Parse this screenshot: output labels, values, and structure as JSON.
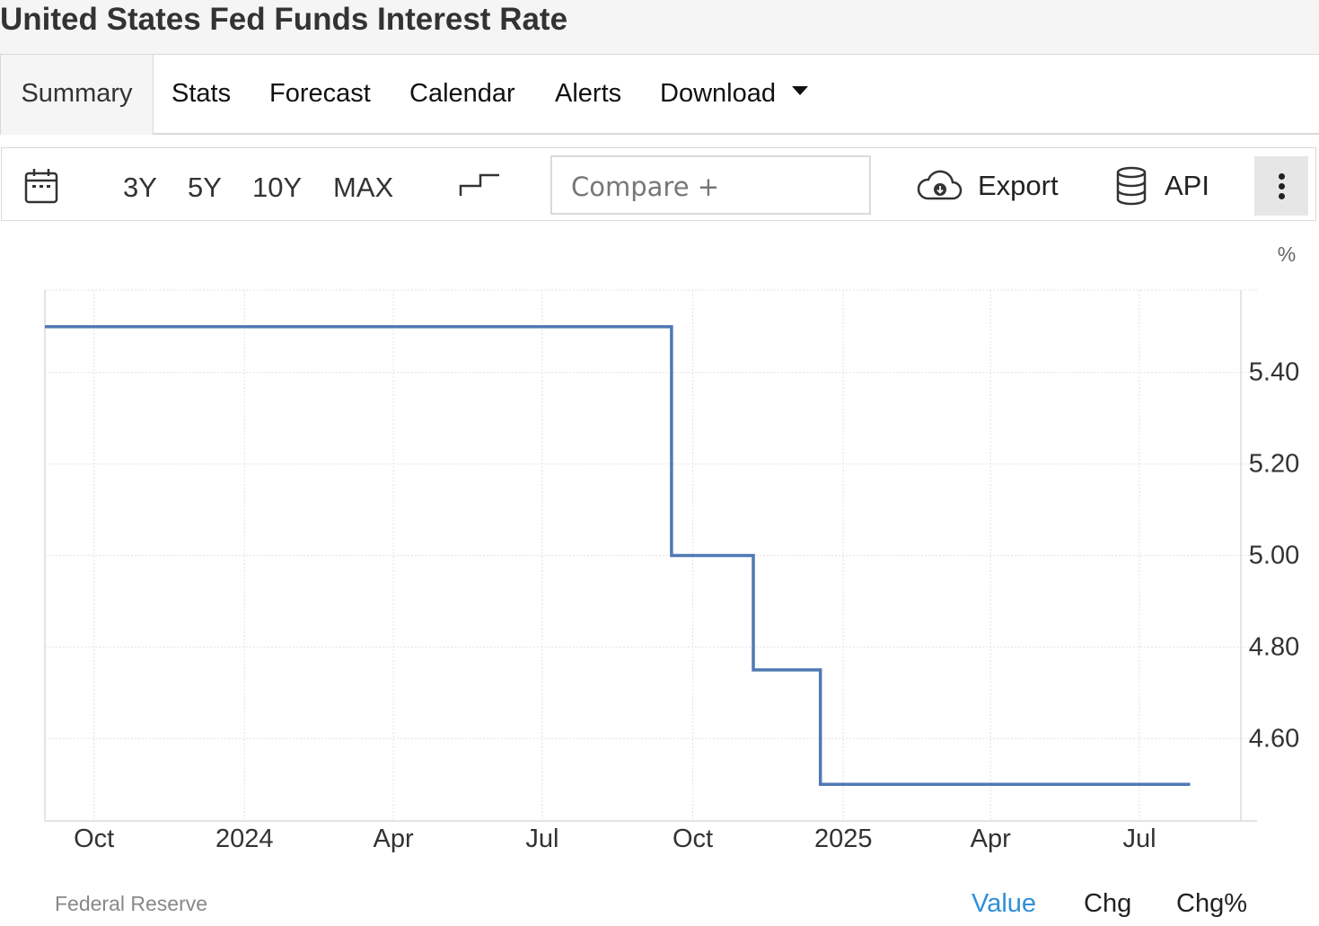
{
  "title": "United States Fed Funds Interest Rate",
  "tabs": [
    {
      "label": "Summary",
      "active": true
    },
    {
      "label": "Stats"
    },
    {
      "label": "Forecast"
    },
    {
      "label": "Calendar"
    },
    {
      "label": "Alerts"
    },
    {
      "label": "Download",
      "dropdown": true
    }
  ],
  "toolbar": {
    "ranges": [
      "3Y",
      "5Y",
      "10Y",
      "MAX"
    ],
    "compare_placeholder": "Compare +",
    "export_label": "Export",
    "api_label": "API",
    "icons": [
      "calendar-icon",
      "step-chart-icon",
      "cloud-download-icon",
      "database-icon",
      "more-vertical-icon"
    ]
  },
  "chart_data": {
    "type": "line",
    "style": "step",
    "unit_label": "%",
    "x_ticks": [
      "Oct",
      "2024",
      "Apr",
      "Jul",
      "Oct",
      "2025",
      "Apr",
      "Jul"
    ],
    "x_tick_dates": [
      "2023-10-01",
      "2024-01-01",
      "2024-04-01",
      "2024-07-01",
      "2024-10-01",
      "2025-01-01",
      "2025-04-01",
      "2025-07-01"
    ],
    "y_ticks": [
      "5.40",
      "5.20",
      "5.00",
      "4.80",
      "4.60"
    ],
    "ylim": [
      4.42,
      5.58
    ],
    "xlim": [
      "2023-09-01",
      "2025-09-01"
    ],
    "y_axis_position": "right",
    "grid": true,
    "line_color": "#4f79b5",
    "series": [
      {
        "x": [
          "2023-09-01",
          "2024-09-18",
          "2024-11-07",
          "2024-12-18",
          "2025-08-01"
        ],
        "y": [
          5.5,
          5.0,
          4.75,
          4.5,
          4.5
        ]
      }
    ]
  },
  "footer": {
    "source": "Federal Reserve",
    "views": [
      {
        "label": "Value",
        "active": true,
        "color": "#2f8fd8"
      },
      {
        "label": "Chg"
      },
      {
        "label": "Chg%"
      }
    ]
  }
}
